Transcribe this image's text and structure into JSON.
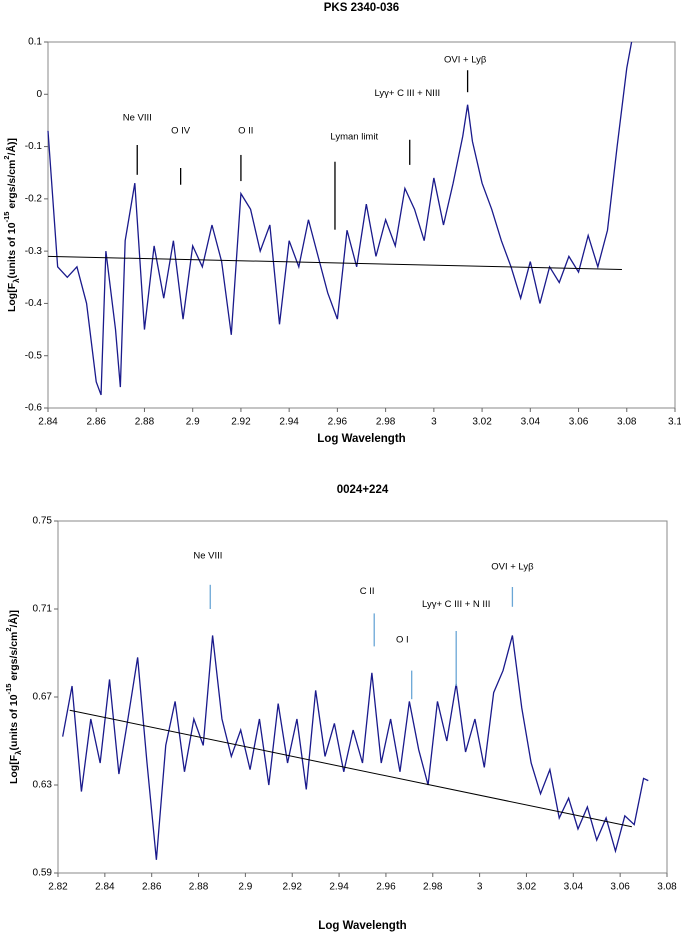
{
  "chart_data": [
    {
      "type": "line",
      "title": "PKS 2340-036",
      "xlabel": "Log Wavelength",
      "ylabel": [
        "Log[F",
        "λ",
        "(units of 10",
        "-15",
        " ergs/s/cm",
        "2",
        "/Å)]"
      ],
      "xlim": [
        2.84,
        3.1
      ],
      "xticks": [
        2.84,
        2.86,
        2.88,
        2.9,
        2.92,
        2.94,
        2.96,
        2.98,
        3,
        3.02,
        3.04,
        3.06,
        3.08,
        3.1
      ],
      "ylim": [
        -0.6,
        0.1
      ],
      "yticks": [
        0.1,
        0,
        -0.1,
        -0.2,
        -0.3,
        -0.4,
        -0.5,
        -0.6
      ],
      "annotation_color": "#000000",
      "series": [
        {
          "color": "#1a1a8c",
          "x": [
            2.84,
            2.844,
            2.848,
            2.852,
            2.856,
            2.86,
            2.862,
            2.864,
            2.868,
            2.87,
            2.872,
            2.876,
            2.88,
            2.884,
            2.888,
            2.892,
            2.896,
            2.9,
            2.904,
            2.908,
            2.912,
            2.916,
            2.92,
            2.924,
            2.928,
            2.932,
            2.936,
            2.94,
            2.944,
            2.948,
            2.952,
            2.956,
            2.96,
            2.964,
            2.968,
            2.972,
            2.976,
            2.98,
            2.984,
            2.988,
            2.992,
            2.996,
            3,
            3.004,
            3.008,
            3.012,
            3.014,
            3.016,
            3.02,
            3.024,
            3.028,
            3.032,
            3.036,
            3.04,
            3.044,
            3.048,
            3.052,
            3.056,
            3.06,
            3.064,
            3.068,
            3.072,
            3.076,
            3.08,
            3.082
          ],
          "values": [
            -0.07,
            -0.33,
            -0.35,
            -0.33,
            -0.4,
            -0.55,
            -0.575,
            -0.3,
            -0.45,
            -0.56,
            -0.28,
            -0.17,
            -0.45,
            -0.29,
            -0.39,
            -0.28,
            -0.43,
            -0.29,
            -0.33,
            -0.25,
            -0.32,
            -0.46,
            -0.19,
            -0.22,
            -0.3,
            -0.25,
            -0.44,
            -0.28,
            -0.33,
            -0.24,
            -0.31,
            -0.38,
            -0.43,
            -0.26,
            -0.33,
            -0.21,
            -0.31,
            -0.24,
            -0.29,
            -0.18,
            -0.22,
            -0.28,
            -0.16,
            -0.25,
            -0.17,
            -0.08,
            -0.02,
            -0.09,
            -0.17,
            -0.22,
            -0.28,
            -0.33,
            -0.39,
            -0.32,
            -0.4,
            -0.33,
            -0.36,
            -0.31,
            -0.34,
            -0.27,
            -0.33,
            -0.26,
            -0.1,
            0.05,
            0.1
          ]
        },
        {
          "color": "#000000",
          "x": [
            2.84,
            3.078
          ],
          "values": [
            -0.31,
            -0.335
          ]
        }
      ],
      "annotations": [
        {
          "text": "Ne VIII",
          "x": 2.877,
          "y": -0.045,
          "line_x": 2.877,
          "line_y": [
            -0.097,
            -0.154
          ]
        },
        {
          "text": "O IV",
          "x": 2.895,
          "y": -0.07,
          "line_x": 2.895,
          "line_y": [
            -0.141,
            -0.173
          ]
        },
        {
          "text": "O II",
          "x": 2.922,
          "y": -0.07,
          "line_x": 2.92,
          "line_y": [
            -0.116,
            -0.166
          ]
        },
        {
          "text": "Lyman limit",
          "x": 2.967,
          "y": -0.082,
          "line_x": 2.959,
          "line_y": [
            -0.129,
            -0.259
          ]
        },
        {
          "text": "Lyγ+ C III + NIII",
          "x": 2.989,
          "y": 0.002,
          "line_x": 2.99,
          "line_y": [
            -0.087,
            -0.135
          ]
        },
        {
          "text": "OVI + Lyβ",
          "x": 3.013,
          "y": 0.066,
          "line_x": 3.014,
          "line_y": [
            0.046,
            0.004
          ]
        }
      ]
    },
    {
      "type": "line",
      "title": "0024+224",
      "xlabel": "Log Wavelength",
      "ylabel": [
        "Log[F",
        "λ",
        "(units of 10",
        "-15",
        " ergs/s/cm",
        "2",
        "/Å)]"
      ],
      "xlim": [
        2.82,
        3.08
      ],
      "xticks": [
        2.82,
        2.84,
        2.86,
        2.88,
        2.9,
        2.92,
        2.94,
        2.96,
        2.98,
        3,
        3.02,
        3.04,
        3.06,
        3.08
      ],
      "ylim": [
        0.59,
        0.75
      ],
      "yticks": [
        0.75,
        0.71,
        0.67,
        0.63,
        0.59
      ],
      "annotation_color": "#6aa6d6",
      "series": [
        {
          "color": "#1a1a8c",
          "x": [
            2.822,
            2.826,
            2.83,
            2.834,
            2.838,
            2.842,
            2.846,
            2.85,
            2.854,
            2.858,
            2.862,
            2.866,
            2.87,
            2.874,
            2.878,
            2.882,
            2.886,
            2.89,
            2.894,
            2.898,
            2.902,
            2.906,
            2.91,
            2.914,
            2.918,
            2.922,
            2.926,
            2.93,
            2.934,
            2.938,
            2.942,
            2.946,
            2.95,
            2.954,
            2.958,
            2.962,
            2.966,
            2.97,
            2.974,
            2.978,
            2.982,
            2.986,
            2.99,
            2.994,
            2.998,
            3.002,
            3.006,
            3.01,
            3.014,
            3.018,
            3.022,
            3.026,
            3.03,
            3.034,
            3.038,
            3.042,
            3.046,
            3.05,
            3.054,
            3.058,
            3.062,
            3.066,
            3.07,
            3.072
          ],
          "values": [
            0.652,
            0.675,
            0.627,
            0.66,
            0.64,
            0.678,
            0.635,
            0.661,
            0.688,
            0.64,
            0.596,
            0.648,
            0.668,
            0.636,
            0.66,
            0.648,
            0.698,
            0.66,
            0.643,
            0.655,
            0.637,
            0.66,
            0.63,
            0.667,
            0.64,
            0.66,
            0.628,
            0.673,
            0.643,
            0.658,
            0.636,
            0.655,
            0.64,
            0.681,
            0.64,
            0.66,
            0.636,
            0.668,
            0.646,
            0.63,
            0.668,
            0.65,
            0.676,
            0.645,
            0.66,
            0.638,
            0.672,
            0.682,
            0.698,
            0.665,
            0.64,
            0.626,
            0.637,
            0.615,
            0.624,
            0.61,
            0.62,
            0.605,
            0.615,
            0.6,
            0.616,
            0.612,
            0.633,
            0.632
          ]
        },
        {
          "color": "#000000",
          "x": [
            2.825,
            3.065
          ],
          "values": [
            0.664,
            0.611
          ]
        }
      ],
      "annotations": [
        {
          "text": "Ne VIII",
          "x": 2.884,
          "y": 0.734,
          "line_x": 2.885,
          "line_y": [
            0.721,
            0.71
          ]
        },
        {
          "text": "C II",
          "x": 2.952,
          "y": 0.718,
          "line_x": 2.955,
          "line_y": [
            0.708,
            0.693
          ]
        },
        {
          "text": "O I",
          "x": 2.967,
          "y": 0.696,
          "line_x": 2.971,
          "line_y": [
            0.682,
            0.669
          ]
        },
        {
          "text": "Lyγ+ C III + N III",
          "x": 2.99,
          "y": 0.712,
          "line_x": 2.99,
          "line_y": [
            0.7,
            0.675
          ]
        },
        {
          "text": "OVI + Lyβ",
          "x": 3.014,
          "y": 0.729,
          "line_x": 3.014,
          "line_y": [
            0.72,
            0.711
          ]
        }
      ]
    }
  ]
}
